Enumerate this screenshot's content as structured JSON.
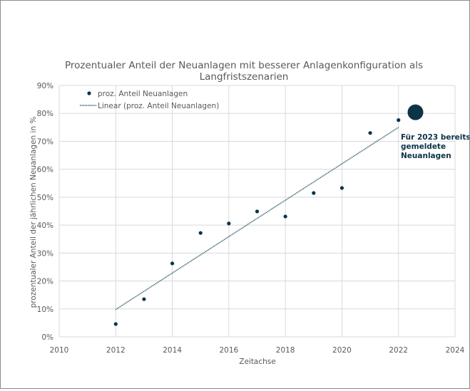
{
  "chart_data": {
    "type": "scatter",
    "title": "Prozentualer Anteil der Neuanlagen mit besserer Anlagenkonfiguration als Langfristszenarien",
    "title_lines": [
      "Prozentualer Anteil der Neuanlagen mit besserer Anlagenkonfiguration als",
      "Langfristszenarien"
    ],
    "xlabel": "Zeitachse",
    "ylabel": "prozentualer Anteil der jährlichen Neuanlagen in %",
    "xlim": [
      2010,
      2024
    ],
    "ylim": [
      0,
      90
    ],
    "x_ticks": [
      "2010",
      "2012",
      "2014",
      "2016",
      "2018",
      "2020",
      "2022",
      "2024"
    ],
    "y_ticks": [
      "0%",
      "10%",
      "20%",
      "30%",
      "40%",
      "50%",
      "60%",
      "70%",
      "80%",
      "90%"
    ],
    "grid": true,
    "legend_position": "top-left",
    "series": [
      {
        "name": "proz. Anteil Neuanlagen",
        "x": [
          2012,
          2013,
          2014,
          2015,
          2016,
          2017,
          2018,
          2019,
          2020,
          2021,
          2022
        ],
        "y": [
          4.6,
          13.5,
          26.3,
          37.2,
          40.6,
          44.9,
          43.1,
          51.5,
          53.3,
          73.0,
          77.6
        ],
        "color": "#0d3347"
      },
      {
        "name": "Linear (proz. Anteil Neuanlagen)",
        "type": "trendline",
        "x": [
          2012,
          2022
        ],
        "y": [
          9.8,
          75.0
        ],
        "color": "#1f4e5f"
      }
    ],
    "highlight": {
      "x": 2022.6,
      "y": 80.4,
      "color": "#0d3347",
      "label_lines": [
        "Für 2023 bereits",
        "gemeldete",
        "Neuanlagen"
      ]
    }
  }
}
